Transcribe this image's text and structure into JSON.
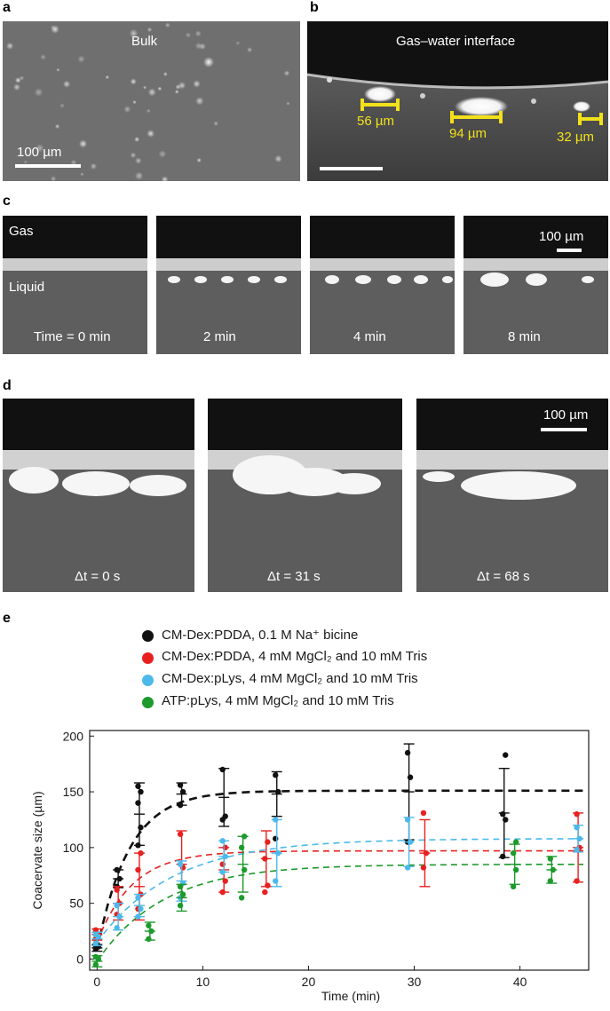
{
  "panels": {
    "a": {
      "letter": "a",
      "label": "Bulk",
      "scale": "100 µm"
    },
    "b": {
      "letter": "b",
      "label": "Gas–water interface",
      "sizes": [
        "56 µm",
        "94 µm",
        "32 µm"
      ]
    },
    "c": {
      "letter": "c",
      "gas": "Gas",
      "liquid": "Liquid",
      "scale": "100 µm",
      "times": [
        "Time = 0 min",
        "2 min",
        "4 min",
        "8 min"
      ]
    },
    "d": {
      "letter": "d",
      "scale": "100 µm",
      "times": [
        "Δt = 0 s",
        "Δt = 31 s",
        "Δt = 68 s"
      ]
    },
    "e": {
      "letter": "e"
    }
  },
  "legend": [
    {
      "label": "CM-Dex:PDDA, 0.1 M Na⁺ bicine",
      "color": "#111111"
    },
    {
      "label": "CM-Dex:PDDA, 4 mM MgCl₂ and 10 mM Tris",
      "color": "#e8201f"
    },
    {
      "label": "CM-Dex:pLys, 4 mM MgCl₂ and 10 mM Tris",
      "color": "#4cb9ea"
    },
    {
      "label": "ATP:pLys, 4 mM MgCl₂ and 10 mM Tris",
      "color": "#1c9a2b"
    }
  ],
  "chart_data": {
    "type": "scatter",
    "xlabel": "Time (min)",
    "ylabel": "Coacervate size (µm)",
    "xlim": [
      -0.7,
      46.5
    ],
    "ylim": [
      -10,
      205
    ],
    "xticks": [
      0,
      10,
      20,
      30,
      40
    ],
    "yticks": [
      0,
      50,
      100,
      150,
      200
    ],
    "grid": false,
    "legend_position": "top",
    "series": [
      {
        "name": "CM-Dex:PDDA, 0.1 M Na⁺ bicine",
        "color": "#111111",
        "fit": {
          "plateau": 151,
          "rate": 0.33,
          "y0": 8
        },
        "points": [
          {
            "x": 0,
            "mean": 10,
            "err": 3,
            "pts": [
              9,
              11,
              12
            ]
          },
          {
            "x": 2,
            "mean": 72,
            "err": 8,
            "pts": [
              65,
              72,
              80
            ]
          },
          {
            "x": 4,
            "mean": 130,
            "err": 28,
            "pts": [
              102,
              118,
              140,
              150,
              155
            ]
          },
          {
            "x": 8,
            "mean": 148,
            "err": 10,
            "pts": [
              138,
              150,
              156
            ]
          },
          {
            "x": 12,
            "mean": 145,
            "err": 26,
            "pts": [
              125,
              128,
              170
            ]
          },
          {
            "x": 17,
            "mean": 148,
            "err": 20,
            "pts": [
              108,
              150,
              165
            ]
          },
          {
            "x": 29.5,
            "mean": 150,
            "err": 43,
            "pts": [
              105,
              163,
              185
            ]
          },
          {
            "x": 38.5,
            "mean": 131,
            "err": 40,
            "pts": [
              92,
              125,
              130,
              183
            ]
          }
        ]
      },
      {
        "name": "CM-Dex:PDDA, 4 mM MgCl₂ and 10 mM Tris",
        "color": "#e8201f",
        "fit": {
          "plateau": 97,
          "rate": 0.3,
          "y0": 15
        },
        "points": [
          {
            "x": 0,
            "mean": 22,
            "err": 5,
            "pts": [
              18,
              22,
              26
            ]
          },
          {
            "x": 2,
            "mean": 50,
            "err": 15,
            "pts": [
              40,
              50,
              62
            ]
          },
          {
            "x": 4,
            "mean": 65,
            "err": 30,
            "pts": [
              45,
              58,
              80,
              95
            ]
          },
          {
            "x": 8,
            "mean": 85,
            "err": 30,
            "pts": [
              65,
              82,
              112
            ]
          },
          {
            "x": 12,
            "mean": 80,
            "err": 20,
            "pts": [
              60,
              70,
              85,
              100
            ]
          },
          {
            "x": 16,
            "mean": 90,
            "err": 25,
            "pts": [
              60,
              66,
              90,
              105
            ]
          },
          {
            "x": 31,
            "mean": 95,
            "err": 30,
            "pts": [
              82,
              95,
              131
            ]
          },
          {
            "x": 45.5,
            "mean": 100,
            "err": 31,
            "pts": [
              70,
              100,
              130
            ]
          }
        ]
      },
      {
        "name": "CM-Dex:pLys, 4 mM MgCl₂ and 10 mM Tris",
        "color": "#4cb9ea",
        "fit": {
          "plateau": 108,
          "rate": 0.14,
          "y0": 15
        },
        "points": [
          {
            "x": 0,
            "mean": 18,
            "err": 6,
            "pts": [
              14,
              20,
              22
            ]
          },
          {
            "x": 2,
            "mean": 38,
            "err": 12,
            "pts": [
              28,
              38,
              48
            ]
          },
          {
            "x": 4,
            "mean": 48,
            "err": 10,
            "pts": [
              38,
              45,
              55
            ]
          },
          {
            "x": 8,
            "mean": 70,
            "err": 18,
            "pts": [
              55,
              68,
              85
            ]
          },
          {
            "x": 12,
            "mean": 92,
            "err": 14,
            "pts": [
              78,
              92,
              106
            ]
          },
          {
            "x": 17,
            "mean": 95,
            "err": 30,
            "pts": [
              70,
              95,
              125
            ]
          },
          {
            "x": 29.5,
            "mean": 105,
            "err": 22,
            "pts": [
              82,
              105,
              125
            ]
          },
          {
            "x": 45.5,
            "mean": 108,
            "err": 12,
            "pts": [
              98,
              108,
              118
            ]
          }
        ]
      },
      {
        "name": "ATP:pLys, 4 mM MgCl₂ and 10 mM Tris",
        "color": "#1c9a2b",
        "fit": {
          "plateau": 85,
          "rate": 0.16,
          "y0": -2
        },
        "points": [
          {
            "x": 0,
            "mean": -2,
            "err": 5,
            "pts": [
              -5,
              0,
              2
            ]
          },
          {
            "x": 5,
            "mean": 25,
            "err": 8,
            "pts": [
              18,
              25,
              30
            ]
          },
          {
            "x": 8,
            "mean": 55,
            "err": 12,
            "pts": [
              48,
              58,
              65
            ]
          },
          {
            "x": 13.8,
            "mean": 85,
            "err": 25,
            "pts": [
              55,
              80,
              100,
              110
            ]
          },
          {
            "x": 39.5,
            "mean": 85,
            "err": 18,
            "pts": [
              65,
              80,
              95,
              105
            ]
          },
          {
            "x": 43,
            "mean": 80,
            "err": 12,
            "pts": [
              70,
              80,
              90
            ]
          }
        ]
      }
    ]
  }
}
